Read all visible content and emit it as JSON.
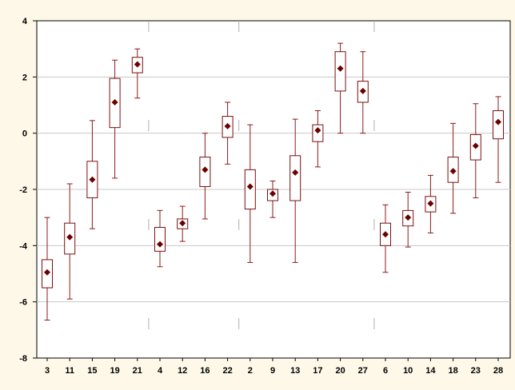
{
  "chart_data": {
    "type": "box",
    "title": "",
    "xlabel": "",
    "ylabel": "",
    "ylim": [
      -8,
      4
    ],
    "yticks": [
      -8,
      -6,
      -4,
      -2,
      0,
      2,
      4
    ],
    "grid": true,
    "categories": [
      "3",
      "11",
      "15",
      "19",
      "21",
      "4",
      "12",
      "16",
      "22",
      "2",
      "9",
      "13",
      "17",
      "20",
      "27",
      "6",
      "10",
      "14",
      "18",
      "23",
      "28"
    ],
    "boxes": [
      {
        "label": "3",
        "min": -6.65,
        "q1": -5.5,
        "median": -4.95,
        "q3": -4.5,
        "max": -3.0
      },
      {
        "label": "11",
        "min": -5.9,
        "q1": -4.3,
        "median": -3.7,
        "q3": -3.2,
        "max": -1.8
      },
      {
        "label": "15",
        "min": -3.4,
        "q1": -2.3,
        "median": -1.65,
        "q3": -1.0,
        "max": 0.45
      },
      {
        "label": "19",
        "min": -1.6,
        "q1": 0.2,
        "median": 1.1,
        "q3": 1.95,
        "max": 2.6
      },
      {
        "label": "21",
        "min": 1.25,
        "q1": 2.15,
        "median": 2.45,
        "q3": 2.7,
        "max": 3.0
      },
      {
        "label": "4",
        "min": -4.75,
        "q1": -4.2,
        "median": -3.95,
        "q3": -3.35,
        "max": -2.75
      },
      {
        "label": "12",
        "min": -3.85,
        "q1": -3.4,
        "median": -3.2,
        "q3": -3.05,
        "max": -2.6
      },
      {
        "label": "16",
        "min": -3.05,
        "q1": -1.9,
        "median": -1.3,
        "q3": -0.85,
        "max": 0.0
      },
      {
        "label": "22",
        "min": -1.1,
        "q1": -0.15,
        "median": 0.25,
        "q3": 0.6,
        "max": 1.1
      },
      {
        "label": "2",
        "min": -4.6,
        "q1": -2.7,
        "median": -1.9,
        "q3": -1.3,
        "max": 0.3
      },
      {
        "label": "9",
        "min": -3.0,
        "q1": -2.4,
        "median": -2.15,
        "q3": -2.0,
        "max": -1.7
      },
      {
        "label": "13",
        "min": -4.6,
        "q1": -2.4,
        "median": -1.4,
        "q3": -0.8,
        "max": 0.5
      },
      {
        "label": "17",
        "min": -1.2,
        "q1": -0.3,
        "median": 0.1,
        "q3": 0.3,
        "max": 0.8
      },
      {
        "label": "20",
        "min": 0.0,
        "q1": 1.5,
        "median": 2.3,
        "q3": 2.9,
        "max": 3.2
      },
      {
        "label": "27",
        "min": 0.0,
        "q1": 1.1,
        "median": 1.5,
        "q3": 1.85,
        "max": 2.9
      },
      {
        "label": "6",
        "min": -4.95,
        "q1": -4.0,
        "median": -3.6,
        "q3": -3.2,
        "max": -2.55
      },
      {
        "label": "10",
        "min": -4.05,
        "q1": -3.3,
        "median": -3.0,
        "q3": -2.75,
        "max": -2.1
      },
      {
        "label": "14",
        "min": -3.55,
        "q1": -2.8,
        "median": -2.5,
        "q3": -2.25,
        "max": -1.5
      },
      {
        "label": "18",
        "min": -2.85,
        "q1": -1.75,
        "median": -1.35,
        "q3": -0.85,
        "max": 0.35
      },
      {
        "label": "23",
        "min": -2.3,
        "q1": -0.95,
        "median": -0.45,
        "q3": -0.05,
        "max": 1.05
      },
      {
        "label": "28",
        "min": -1.75,
        "q1": -0.2,
        "median": 0.4,
        "q3": 0.8,
        "max": 1.3
      }
    ],
    "separator_after_index": [
      4,
      8,
      14
    ],
    "colors": {
      "box": "#7a0f0f",
      "whisker": "#8b1a1a",
      "median_marker": "#6b0000",
      "grid": "#c8c8c8",
      "plot_bg": "#ffffff",
      "page_bg": "#fdf8e8",
      "separator": "#b0b0b0"
    }
  }
}
